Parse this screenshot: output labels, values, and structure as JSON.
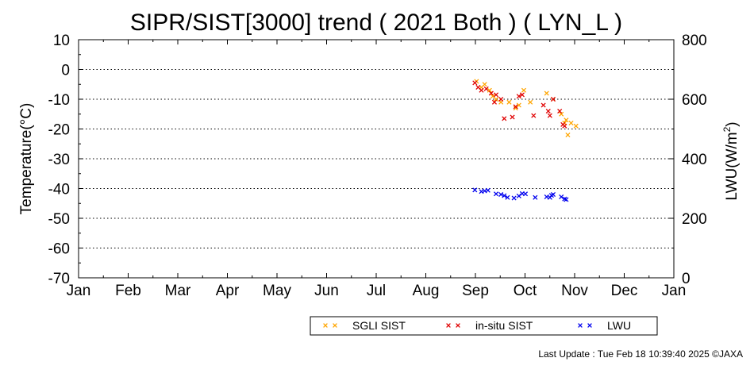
{
  "chart_data": {
    "type": "scatter",
    "title": "SIPR/SIST[3000] trend ( 2021 Both ) ( LYN_L )",
    "ylabel_left": "Temperature(°C)",
    "ylabel_right_base": "LWU(W/m",
    "ylabel_right_sup": "2",
    "ylabel_right_end": ")",
    "ylim_left": [
      -70,
      10
    ],
    "ylim_right": [
      0,
      800
    ],
    "left_ticks": [
      "10",
      "0",
      "-10",
      "-20",
      "-30",
      "-40",
      "-50",
      "-60",
      "-70"
    ],
    "right_ticks": [
      "800",
      "600",
      "400",
      "200",
      "0"
    ],
    "x_ticks": [
      "Jan",
      "Feb",
      "Mar",
      "Apr",
      "May",
      "Jun",
      "Jul",
      "Aug",
      "Sep",
      "Oct",
      "Nov",
      "Dec",
      "Jan"
    ],
    "grid": "horizontal dotted",
    "legend_position": "bottom-right",
    "series": [
      {
        "name": "SGLI SIST",
        "axis": "left",
        "color": "#ffa500",
        "points": [
          [
            "2021-09-02",
            -4
          ],
          [
            "2021-09-05",
            -6
          ],
          [
            "2021-09-07",
            -5
          ],
          [
            "2021-09-10",
            -7
          ],
          [
            "2021-09-12",
            -9
          ],
          [
            "2021-09-14",
            -10
          ],
          [
            "2021-09-17",
            -11
          ],
          [
            "2021-09-22",
            -11
          ],
          [
            "2021-09-26",
            -13
          ],
          [
            "2021-09-28",
            -12
          ],
          [
            "2021-10-01",
            -7
          ],
          [
            "2021-10-05",
            -11
          ],
          [
            "2021-10-15",
            -8
          ],
          [
            "2021-10-19",
            -10
          ],
          [
            "2021-10-24",
            -15
          ],
          [
            "2021-10-26",
            -18
          ],
          [
            "2021-10-27",
            -17
          ],
          [
            "2021-10-28",
            -22
          ],
          [
            "2021-10-30",
            -18
          ],
          [
            "2021-11-02",
            -19
          ]
        ]
      },
      {
        "name": "in-situ SIST",
        "axis": "left",
        "color": "#e00000",
        "points": [
          [
            "2021-09-01",
            -4.5
          ],
          [
            "2021-09-03",
            -6
          ],
          [
            "2021-09-05",
            -7
          ],
          [
            "2021-09-08",
            -6.5
          ],
          [
            "2021-09-11",
            -8
          ],
          [
            "2021-09-13",
            -11
          ],
          [
            "2021-09-14",
            -8.5
          ],
          [
            "2021-09-17",
            -10
          ],
          [
            "2021-09-19",
            -16.5
          ],
          [
            "2021-09-24",
            -16
          ],
          [
            "2021-09-26",
            -12.5
          ],
          [
            "2021-09-28",
            -9
          ],
          [
            "2021-09-30",
            -8.5
          ],
          [
            "2021-10-07",
            -15.5
          ],
          [
            "2021-10-13",
            -12
          ],
          [
            "2021-10-16",
            -14
          ],
          [
            "2021-10-17",
            -15.5
          ],
          [
            "2021-10-19",
            -10
          ],
          [
            "2021-10-23",
            -14
          ],
          [
            "2021-10-25",
            -18.5
          ],
          [
            "2021-10-26",
            -19
          ]
        ]
      },
      {
        "name": "LWU",
        "axis": "right",
        "color": "#0000ee",
        "points": [
          [
            "2021-09-01",
            295
          ],
          [
            "2021-09-05",
            290
          ],
          [
            "2021-09-07",
            292
          ],
          [
            "2021-09-09",
            294
          ],
          [
            "2021-09-14",
            282
          ],
          [
            "2021-09-17",
            280
          ],
          [
            "2021-09-19",
            276
          ],
          [
            "2021-09-21",
            270
          ],
          [
            "2021-09-25",
            268
          ],
          [
            "2021-09-28",
            275
          ],
          [
            "2021-09-30",
            283
          ],
          [
            "2021-10-02",
            282
          ],
          [
            "2021-10-08",
            270
          ],
          [
            "2021-10-15",
            272
          ],
          [
            "2021-10-17",
            270
          ],
          [
            "2021-10-18",
            277
          ],
          [
            "2021-10-19",
            280
          ],
          [
            "2021-10-24",
            272
          ],
          [
            "2021-10-26",
            265
          ],
          [
            "2021-10-27",
            263
          ]
        ]
      }
    ],
    "legend": [
      {
        "label": "SGLI SIST",
        "color": "#ffa500"
      },
      {
        "label": "in-situ SIST",
        "color": "#e00000"
      },
      {
        "label": "LWU",
        "color": "#0000ee"
      }
    ],
    "footer": "Last Update : Tue Feb 18 10:39:40 2025  ©JAXA"
  }
}
